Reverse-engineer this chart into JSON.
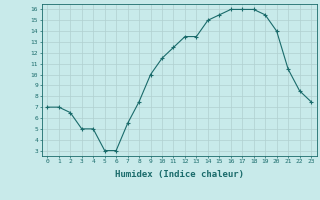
{
  "x": [
    0,
    1,
    2,
    3,
    4,
    5,
    6,
    7,
    8,
    9,
    10,
    11,
    12,
    13,
    14,
    15,
    16,
    17,
    18,
    19,
    20,
    21,
    22,
    23
  ],
  "y": [
    7,
    7,
    6.5,
    5,
    5,
    3,
    3,
    5.5,
    7.5,
    10,
    11.5,
    12.5,
    13.5,
    13.5,
    15,
    15.5,
    16,
    16,
    16,
    15.5,
    14,
    10.5,
    8.5,
    7.5
  ],
  "line_color": "#1a6b6b",
  "marker": "+",
  "bg_color": "#c8eaea",
  "grid_color": "#b0d0d0",
  "xlabel": "Humidex (Indice chaleur)",
  "xlim": [
    -0.5,
    23.5
  ],
  "ylim": [
    2.5,
    16.5
  ],
  "xtick_labels": [
    "0",
    "1",
    "2",
    "3",
    "4",
    "5",
    "6",
    "7",
    "8",
    "9",
    "10",
    "11",
    "12",
    "13",
    "14",
    "15",
    "16",
    "17",
    "18",
    "19",
    "20",
    "21",
    "22",
    "23"
  ],
  "ytick_values": [
    3,
    4,
    5,
    6,
    7,
    8,
    9,
    10,
    11,
    12,
    13,
    14,
    15,
    16
  ],
  "font_color": "#1a6b6b"
}
